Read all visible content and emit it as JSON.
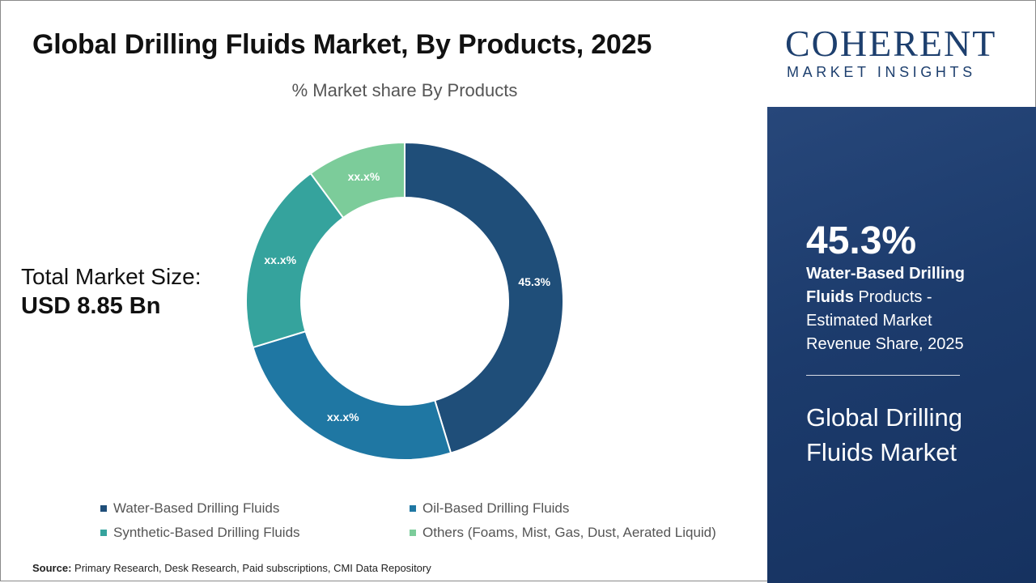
{
  "header": {
    "title": "Global Drilling Fluids Market, By Products, 2025",
    "subtitle": "% Market share By Products"
  },
  "total": {
    "label": "Total Market Size:",
    "value": "USD 8.85 Bn"
  },
  "chart_data": {
    "type": "pie",
    "variant": "donut",
    "title": "% Market share By Products",
    "categories": [
      "Water-Based Drilling Fluids",
      "Oil-Based Drilling Fluids",
      "Synthetic-Based Drilling Fluids",
      "Others (Foams, Mist, Gas, Dust, Aerated Liquid)"
    ],
    "values": [
      45.3,
      25.0,
      19.6,
      10.1
    ],
    "data_labels": [
      "45.3%",
      "xx.x%",
      "xx.x%",
      "xx.x%"
    ],
    "colors": [
      "#1f4e79",
      "#1f77a3",
      "#35a39d",
      "#7ccc9a"
    ],
    "legend_position": "bottom"
  },
  "source": {
    "label": "Source:",
    "text": "Primary Research, Desk Research, Paid subscriptions, CMI Data Repository"
  },
  "brand": {
    "name": "COHERENT",
    "tagline": "MARKET INSIGHTS",
    "primary_color": "#1d3f6e"
  },
  "highlight": {
    "value": "45.3%",
    "bold_text": "Water-Based Drilling Fluids",
    "rest_text": " Products - Estimated Market Revenue Share, 2025",
    "market_name": "Global Drilling Fluids Market",
    "panel_color": "#1c3b6c"
  }
}
